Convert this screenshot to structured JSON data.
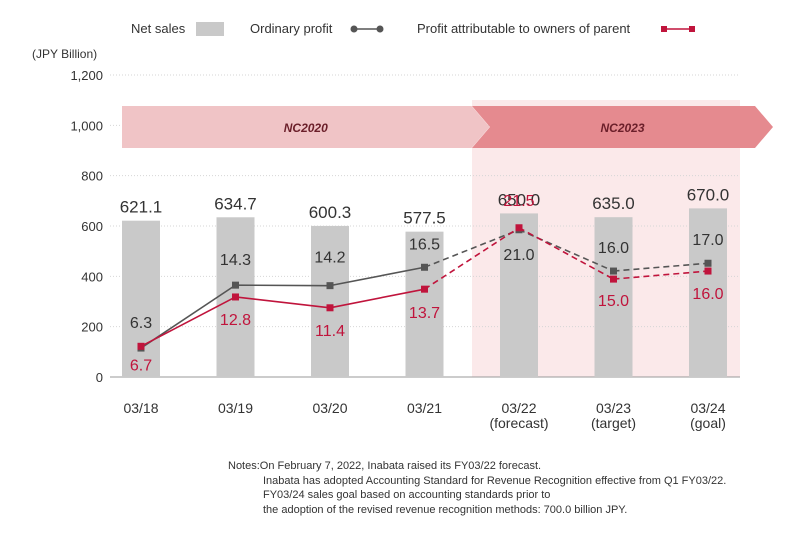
{
  "chart_data": {
    "type": "bar",
    "y_unit_label": "(JPY Billion)",
    "categories": [
      "03/18",
      "03/19",
      "03/20",
      "03/21",
      "03/22\n(forecast)",
      "03/23\n(target)",
      "03/24\n(goal)"
    ],
    "yticks": [
      "0",
      "200",
      "400",
      "600",
      "800",
      "1,000",
      "1,200"
    ],
    "ylim": [
      0,
      1200
    ],
    "legend": {
      "net_sales": "Net sales",
      "ordinary_profit": "Ordinary  profit",
      "profit_parent": "Profit attributable to owners of parent"
    },
    "series": [
      {
        "name": "Net sales",
        "kind": "bar",
        "values": [
          621.1,
          634.7,
          600.3,
          577.5,
          650.0,
          635.0,
          670.0
        ],
        "labels": [
          "621.1",
          "634.7",
          "600.3",
          "577.5",
          "650.0",
          "635.0",
          "670.0"
        ],
        "color": "#c9c9c9"
      },
      {
        "name": "Ordinary  profit",
        "kind": "line",
        "plotted_values": [
          115,
          365,
          363,
          436,
          585,
          421,
          452
        ],
        "labels": [
          "6.3",
          "14.3",
          "14.2",
          "16.5",
          "21.0",
          "16.0",
          "17.0"
        ],
        "color": "#555555"
      },
      {
        "name": "Profit attributable to owners of parent",
        "kind": "line",
        "plotted_values": [
          122,
          318,
          275,
          349,
          593,
          389,
          421
        ],
        "labels": [
          "6.7",
          "12.8",
          "11.4",
          "13.7",
          "21.5",
          "15.0",
          "16.0"
        ],
        "color": "#c0143c"
      }
    ],
    "periods": [
      {
        "label": "NC2020",
        "from": 0,
        "to": 3,
        "color": "#f0c4c6"
      },
      {
        "label": "NC2023",
        "from": 4,
        "to": 6,
        "color": "#e58a8f"
      }
    ],
    "shaded_region": {
      "from": 4,
      "to": 6,
      "color": "#fbe9ea"
    }
  },
  "notes": [
    "Notes:On February 7, 2022, Inabata raised its FY03/22 forecast.",
    "Inabata has adopted Accounting Standard for Revenue Recognition effective from Q1 FY03/22.",
    "FY03/24 sales goal based on accounting standards prior to",
    "the adoption of the revised revenue recognition methods: 700.0 billion JPY."
  ]
}
